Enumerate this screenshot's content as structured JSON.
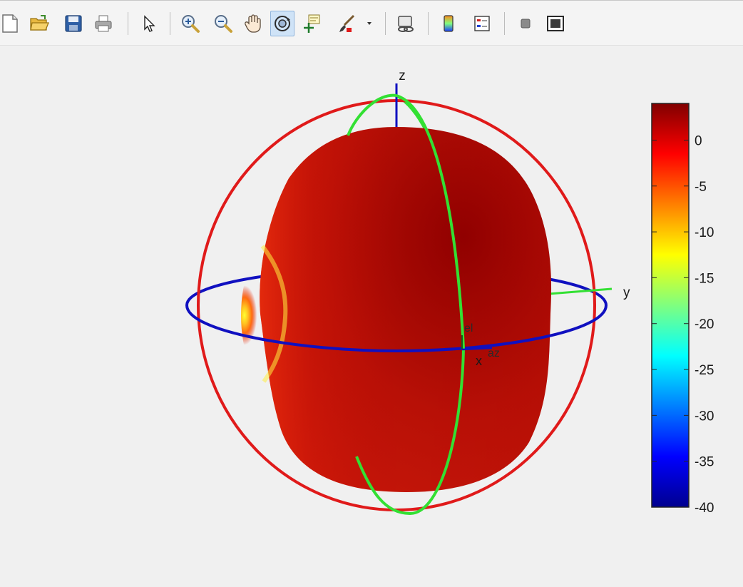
{
  "toolbar": {
    "buttons": [
      {
        "name": "new-figure-button",
        "icon": "new-document-icon"
      },
      {
        "name": "open-file-button",
        "icon": "folder-open-icon"
      },
      {
        "name": "save-button",
        "icon": "floppy-disk-icon"
      },
      {
        "name": "print-button",
        "icon": "printer-icon"
      },
      {
        "name": "edit-plot-button",
        "icon": "pointer-arrow-icon"
      },
      {
        "name": "zoom-in-button",
        "icon": "zoom-in-icon"
      },
      {
        "name": "zoom-out-button",
        "icon": "zoom-out-icon"
      },
      {
        "name": "pan-button",
        "icon": "hand-icon"
      },
      {
        "name": "rotate-3d-button",
        "icon": "rotate-3d-icon",
        "active": true
      },
      {
        "name": "data-cursor-button",
        "icon": "data-cursor-icon"
      },
      {
        "name": "brush-button",
        "icon": "brush-icon"
      },
      {
        "name": "link-plot-button",
        "icon": "link-plot-icon"
      },
      {
        "name": "insert-colorbar-button",
        "icon": "colorbar-icon"
      },
      {
        "name": "insert-legend-button",
        "icon": "legend-icon"
      },
      {
        "name": "hide-plot-tools-button",
        "icon": "hide-tools-icon"
      },
      {
        "name": "show-plot-tools-button",
        "icon": "show-tools-icon"
      }
    ]
  },
  "axes": {
    "z_label": "z",
    "y_label": "y",
    "x_label": "x",
    "el_label": "el",
    "az_label": "az",
    "colors": {
      "azimuth_circle": "#1010c0",
      "elevation_circle": "#e01a1a",
      "green_circle": "#33e033",
      "pattern": "#c21010"
    }
  },
  "colorbar": {
    "colormap": "jet",
    "min": -40,
    "max": 4,
    "ticks": [
      "0",
      "-5",
      "-10",
      "-15",
      "-20",
      "-25",
      "-30",
      "-35",
      "-40"
    ],
    "tick_values": [
      0,
      -5,
      -10,
      -15,
      -20,
      -25,
      -30,
      -35,
      -40
    ]
  }
}
